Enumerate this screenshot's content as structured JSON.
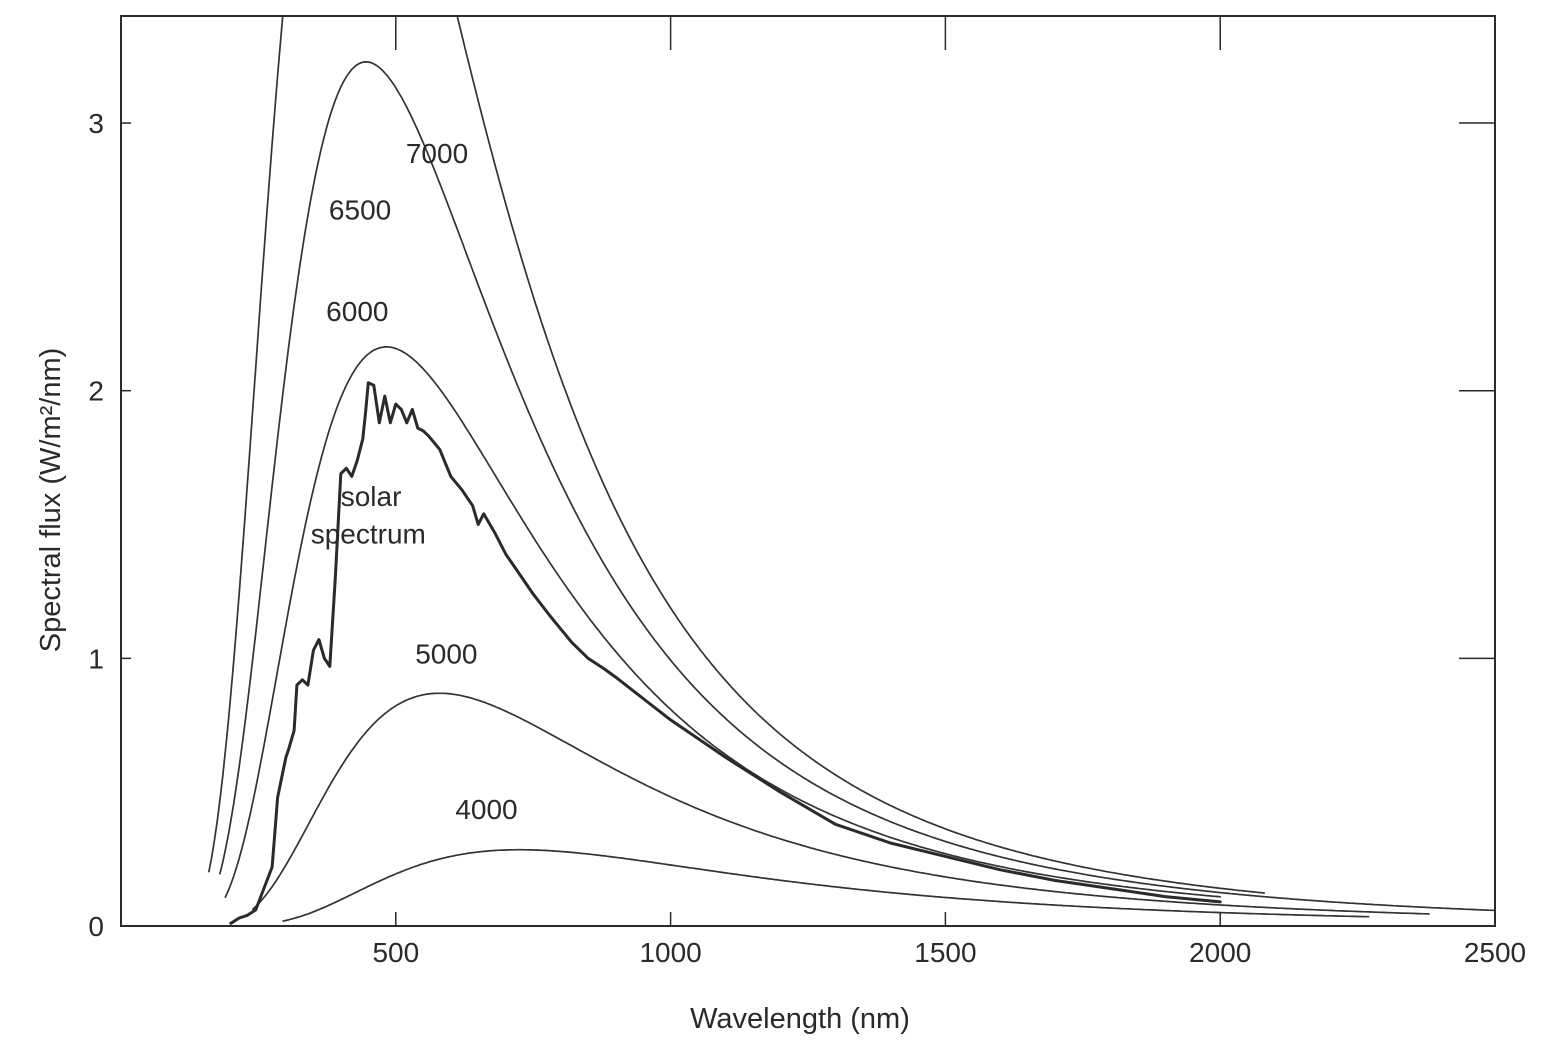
{
  "chart_data": {
    "type": "line",
    "xlabel": "Wavelength (nm)",
    "ylabel": "Spectral flux (W/m²/nm)",
    "xlim": [
      0,
      2500
    ],
    "ylim": [
      0,
      3.4
    ],
    "xticks": [
      500,
      1000,
      1500,
      2000,
      2500
    ],
    "yticks": [
      0,
      1,
      2,
      3
    ],
    "grid": false,
    "series": [
      {
        "name": "7000",
        "kind": "blackbody",
        "temperature_K": 7000,
        "x_range": [
          160,
          2080
        ]
      },
      {
        "name": "6500",
        "kind": "blackbody",
        "temperature_K": 6500,
        "x_range": [
          180,
          2500
        ]
      },
      {
        "name": "6000",
        "kind": "blackbody",
        "temperature_K": 6000,
        "x_range": [
          190,
          2000
        ]
      },
      {
        "name": "5000",
        "kind": "blackbody",
        "temperature_K": 5000,
        "x_range": [
          240,
          2380
        ]
      },
      {
        "name": "4000",
        "kind": "blackbody",
        "temperature_K": 4000,
        "x_range": [
          295,
          2270
        ]
      },
      {
        "name": "solar spectrum",
        "kind": "measured",
        "x": [
          200,
          215,
          230,
          245,
          260,
          275,
          280,
          285,
          295,
          300,
          305,
          315,
          320,
          330,
          340,
          350,
          360,
          370,
          380,
          390,
          400,
          410,
          420,
          430,
          440,
          445,
          450,
          460,
          470,
          480,
          490,
          500,
          510,
          520,
          530,
          540,
          550,
          560,
          580,
          600,
          620,
          640,
          650,
          660,
          680,
          700,
          720,
          750,
          780,
          800,
          820,
          850,
          880,
          900,
          950,
          1000,
          1100,
          1200,
          1300,
          1400,
          1500,
          1600,
          1700,
          1800,
          1900,
          2000
        ],
        "y": [
          0.01,
          0.03,
          0.04,
          0.06,
          0.14,
          0.22,
          0.35,
          0.48,
          0.58,
          0.63,
          0.66,
          0.73,
          0.9,
          0.92,
          0.9,
          1.03,
          1.07,
          1.0,
          0.97,
          1.3,
          1.69,
          1.71,
          1.68,
          1.74,
          1.82,
          1.92,
          2.03,
          2.02,
          1.88,
          1.98,
          1.88,
          1.95,
          1.93,
          1.88,
          1.93,
          1.86,
          1.85,
          1.83,
          1.78,
          1.68,
          1.63,
          1.57,
          1.5,
          1.54,
          1.47,
          1.39,
          1.33,
          1.24,
          1.16,
          1.11,
          1.06,
          1.0,
          0.96,
          0.93,
          0.85,
          0.77,
          0.63,
          0.5,
          0.38,
          0.31,
          0.26,
          0.21,
          0.17,
          0.14,
          0.11,
          0.09
        ]
      }
    ],
    "annotations": [
      {
        "text": "7000",
        "x": 575,
        "y": 2.85
      },
      {
        "text": "6500",
        "x": 435,
        "y": 2.64
      },
      {
        "text": "6000",
        "x": 430,
        "y": 2.26
      },
      {
        "text": "solar",
        "x": 455,
        "y": 1.57
      },
      {
        "text": "spectrum",
        "x": 450,
        "y": 1.43
      },
      {
        "text": "5000",
        "x": 592,
        "y": 0.98
      },
      {
        "text": "4000",
        "x": 665,
        "y": 0.4
      }
    ]
  }
}
